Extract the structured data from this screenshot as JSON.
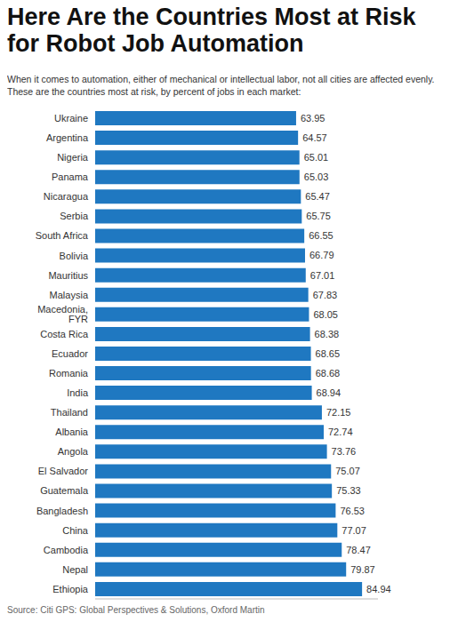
{
  "chart_data": {
    "type": "bar",
    "title": "Here Are the Countries Most at Risk for Robot Job Automation",
    "subtitle": "When it comes to automation, either of mechanical or intellectual labor, not all cities are affected evenly. These are the countries most at risk, by percent of jobs in each market:",
    "source": "Source: Citi GPS: Global Perspectives & Solutions, Oxford Martin",
    "orientation": "horizontal",
    "categories": [
      "Ukraine",
      "Argentina",
      "Nigeria",
      "Panama",
      "Nicaragua",
      "Serbia",
      "South Africa",
      "Bolivia",
      "Mauritius",
      "Malaysia",
      "Macedonia, FYR",
      "Costa Rica",
      "Ecuador",
      "Romania",
      "India",
      "Thailand",
      "Albania",
      "Angola",
      "El Salvador",
      "Guatemala",
      "Bangladesh",
      "China",
      "Cambodia",
      "Nepal",
      "Ethiopia"
    ],
    "values": [
      63.95,
      64.57,
      65.01,
      65.03,
      65.47,
      65.75,
      66.55,
      66.79,
      67.01,
      67.83,
      68.05,
      68.38,
      68.65,
      68.68,
      68.94,
      72.15,
      72.74,
      73.76,
      75.07,
      75.33,
      76.53,
      77.07,
      78.47,
      79.87,
      84.94
    ],
    "color": "#1f78c1",
    "xlim": [
      0,
      90
    ],
    "tick_labels": "y",
    "data_labels": true,
    "grid": false
  }
}
